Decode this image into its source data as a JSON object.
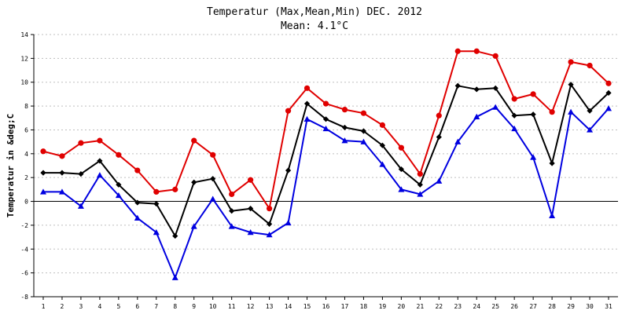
{
  "chart_data": {
    "type": "line",
    "title": "Temperatur (Max,Mean,Min) DEC. 2012",
    "subtitle": "Mean: 4.1°C",
    "ylabel": "Temperatur in &deg;C",
    "xlabel": "",
    "ylim": [
      -8,
      14
    ],
    "yticks": [
      -8,
      -6,
      -4,
      -2,
      0,
      2,
      4,
      6,
      8,
      10,
      12,
      14
    ],
    "grid": true,
    "legend": "none",
    "x": [
      1,
      2,
      3,
      4,
      5,
      6,
      7,
      8,
      9,
      10,
      11,
      12,
      13,
      14,
      15,
      16,
      17,
      18,
      19,
      20,
      21,
      22,
      23,
      24,
      25,
      26,
      27,
      28,
      29,
      30,
      31
    ],
    "series": [
      {
        "color": "#e00000",
        "marker": "circle",
        "values": [
          4.2,
          3.8,
          4.9,
          5.1,
          3.9,
          2.6,
          0.8,
          1.0,
          5.1,
          3.9,
          0.6,
          1.8,
          -0.6,
          7.6,
          9.5,
          8.2,
          7.7,
          7.4,
          6.4,
          4.5,
          2.3,
          7.2,
          12.6,
          12.6,
          12.2,
          8.6,
          9.0,
          7.5,
          11.7,
          11.4,
          9.9
        ]
      },
      {
        "color": "#000000",
        "marker": "diamond",
        "values": [
          2.4,
          2.4,
          2.3,
          3.4,
          1.4,
          -0.1,
          -0.2,
          -2.9,
          1.6,
          1.9,
          -0.8,
          -0.6,
          -1.9,
          2.6,
          8.2,
          6.9,
          6.2,
          5.9,
          4.7,
          2.7,
          1.4,
          5.4,
          9.7,
          9.4,
          9.5,
          7.2,
          7.3,
          3.2,
          9.8,
          7.6,
          9.1
        ]
      },
      {
        "color": "#0000e0",
        "marker": "triangle",
        "values": [
          0.8,
          0.8,
          -0.4,
          2.2,
          0.5,
          -1.4,
          -2.6,
          -6.4,
          -2.1,
          0.2,
          -2.1,
          -2.6,
          -2.8,
          -1.8,
          6.9,
          6.1,
          5.1,
          5.0,
          3.1,
          1.0,
          0.6,
          1.7,
          5.0,
          7.1,
          7.9,
          6.1,
          3.7,
          -1.2,
          7.5,
          6.0,
          7.8
        ]
      }
    ]
  },
  "colors": {
    "axis": "#000000",
    "grid": "#bfbfbf",
    "zero_line": "#000000"
  }
}
